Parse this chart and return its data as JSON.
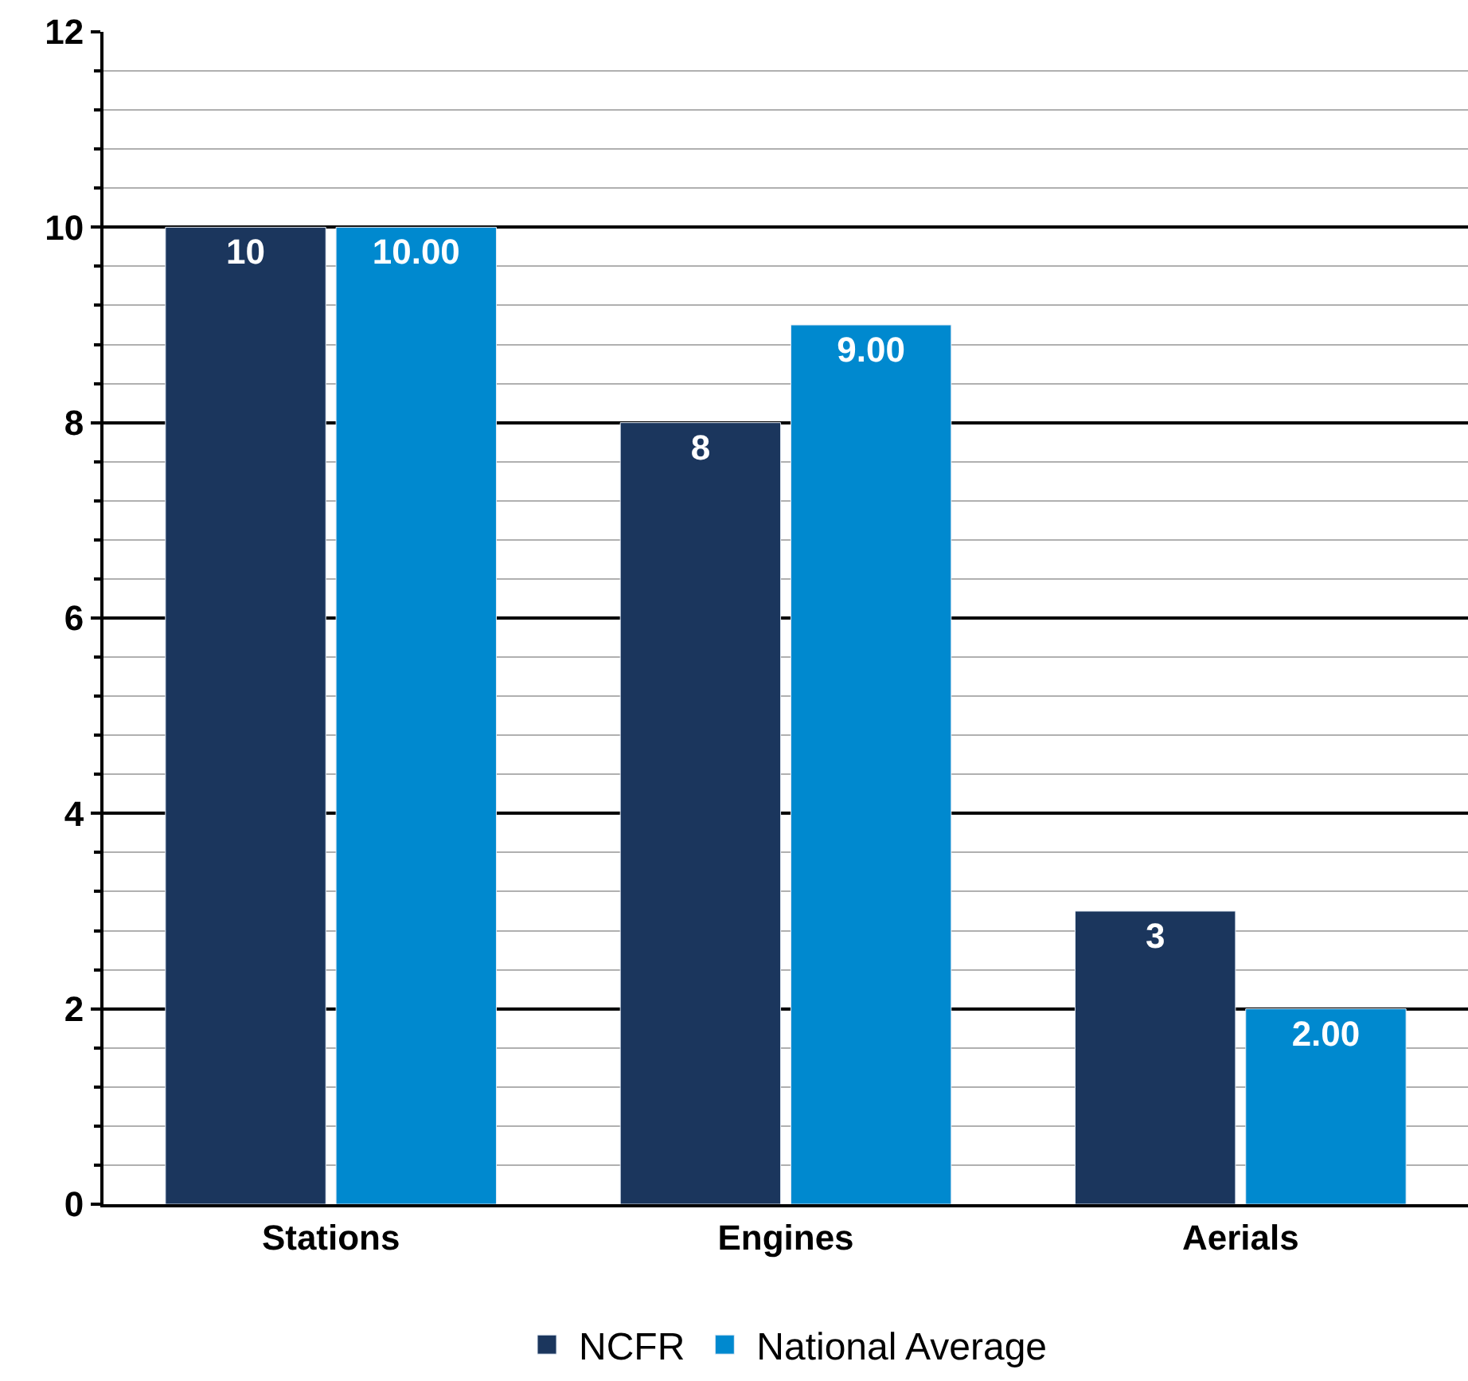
{
  "chart_data": {
    "type": "bar",
    "categories": [
      "Stations",
      "Engines",
      "Aerials"
    ],
    "series": [
      {
        "name": "NCFR",
        "color": "#1b365d",
        "values": [
          10,
          8,
          3
        ],
        "value_labels": [
          "10",
          "8",
          "3"
        ]
      },
      {
        "name": "National Average",
        "color": "#0089cf",
        "values": [
          10,
          9,
          2
        ],
        "value_labels": [
          "10.00",
          "9.00",
          "2.00"
        ]
      }
    ],
    "ylim": [
      0,
      12
    ],
    "yticks": [
      0,
      2,
      4,
      6,
      8,
      10,
      12
    ],
    "grid": "y",
    "legend": "bottom"
  }
}
